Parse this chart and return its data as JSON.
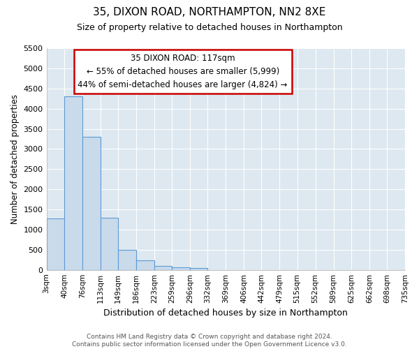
{
  "title": "35, DIXON ROAD, NORTHAMPTON, NN2 8XE",
  "subtitle": "Size of property relative to detached houses in Northampton",
  "xlabel": "Distribution of detached houses by size in Northampton",
  "ylabel": "Number of detached properties",
  "bin_edges": [
    3,
    40,
    76,
    113,
    149,
    186,
    223,
    259,
    296,
    332,
    369,
    406,
    442,
    479,
    515,
    552,
    589,
    625,
    662,
    698,
    735
  ],
  "bar_heights": [
    1270,
    4310,
    3300,
    1290,
    490,
    240,
    100,
    70,
    50,
    0,
    0,
    0,
    0,
    0,
    0,
    0,
    0,
    0,
    0,
    0
  ],
  "bar_color": "#c9daea",
  "bar_edge_color": "#5b9bd5",
  "annotation_title": "35 DIXON ROAD: 117sqm",
  "annotation_line1": "← 55% of detached houses are smaller (5,999)",
  "annotation_line2": "44% of semi-detached houses are larger (4,824) →",
  "annotation_box_edge_color": "#cc0000",
  "annotation_box_face_color": "#ffffff",
  "ylim": [
    0,
    5500
  ],
  "yticks": [
    0,
    500,
    1000,
    1500,
    2000,
    2500,
    3000,
    3500,
    4000,
    4500,
    5000,
    5500
  ],
  "plot_bg_color": "#dde8f0",
  "fig_bg_color": "#ffffff",
  "grid_color": "#ffffff",
  "footer_line1": "Contains HM Land Registry data © Crown copyright and database right 2024.",
  "footer_line2": "Contains public sector information licensed under the Open Government Licence v3.0."
}
